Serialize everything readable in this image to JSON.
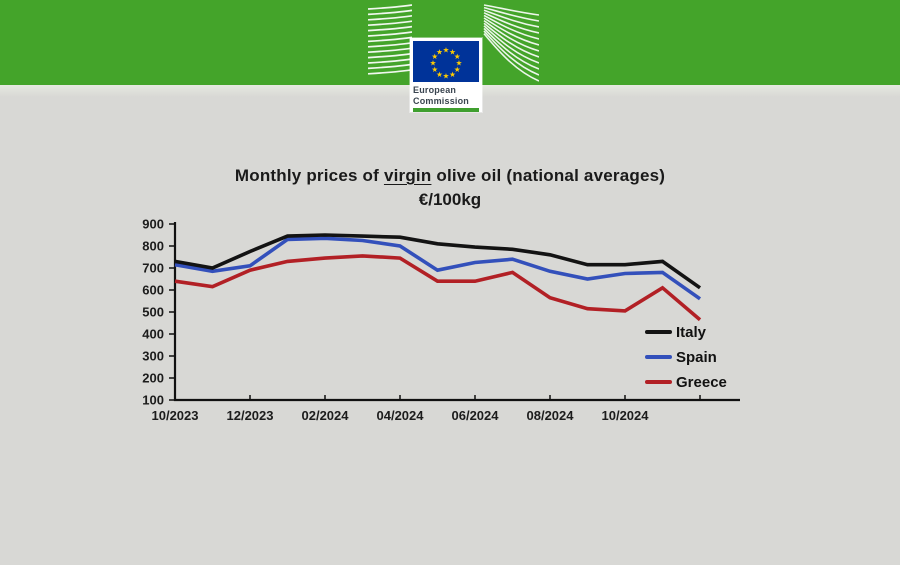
{
  "page": {
    "background": "#d8d8d5"
  },
  "banner": {
    "color": "#44a42a"
  },
  "logo": {
    "org_line1": "European",
    "org_line2": "Commission",
    "flag_blue": "#003399",
    "star_yellow": "#ffcc00",
    "underline_green": "#3f9f2f",
    "text_color": "#3a4550"
  },
  "chart": {
    "title_prefix": "Monthly prices of ",
    "title_underlined": "virgin",
    "title_suffix": " olive oil (national averages)",
    "subtitle": "€/100kg"
  },
  "chart_data": {
    "type": "line",
    "title": "Monthly prices of virgin olive oil (national averages)",
    "subtitle": "€/100kg",
    "xlabel": "",
    "ylabel": "",
    "categories": [
      "10/2023",
      "11/2023",
      "12/2023",
      "01/2024",
      "02/2024",
      "03/2024",
      "04/2024",
      "05/2024",
      "06/2024",
      "07/2024",
      "08/2024",
      "09/2024",
      "10/2024",
      "11/2024",
      "12/2024"
    ],
    "x_tick_labels": [
      "10/2023",
      "12/2023",
      "02/2024",
      "04/2024",
      "06/2024",
      "08/2024",
      "10/2024"
    ],
    "series": [
      {
        "name": "Italy",
        "color": "#131313",
        "values": [
          730,
          700,
          775,
          845,
          850,
          845,
          840,
          810,
          795,
          785,
          760,
          715,
          715,
          730,
          610
        ]
      },
      {
        "name": "Spain",
        "color": "#3350bb",
        "values": [
          715,
          685,
          710,
          830,
          835,
          825,
          800,
          690,
          725,
          740,
          685,
          650,
          675,
          680,
          560
        ]
      },
      {
        "name": "Greece",
        "color": "#b22025",
        "values": [
          640,
          615,
          690,
          730,
          745,
          755,
          745,
          640,
          640,
          680,
          565,
          515,
          505,
          610,
          465
        ]
      }
    ],
    "ylim": [
      100,
      900
    ],
    "y_ticks": [
      100,
      200,
      300,
      400,
      500,
      600,
      700,
      800,
      900
    ],
    "grid": false,
    "legend_position": "inside-right-bottom"
  }
}
